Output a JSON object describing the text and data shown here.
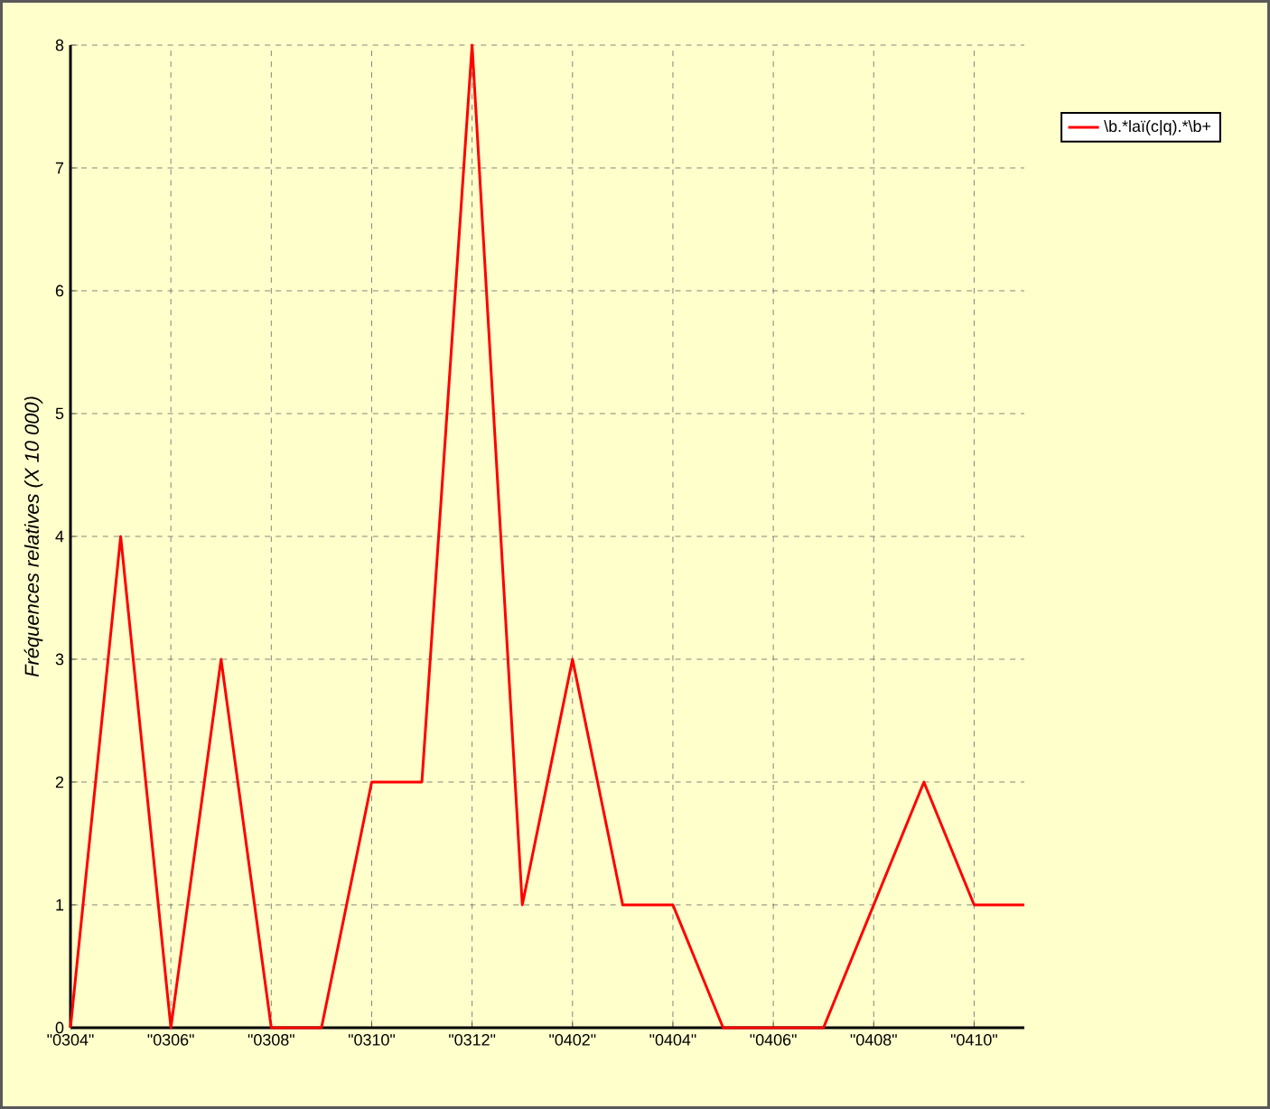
{
  "chart_data": {
    "type": "line",
    "ylabel": "Fréquences relatives (X 10 000)",
    "categories": [
      "\"0304\"",
      null,
      "\"0306\"",
      null,
      "\"0308\"",
      null,
      "\"0310\"",
      null,
      "\"0312\"",
      null,
      "\"0402\"",
      null,
      "\"0404\"",
      null,
      "\"0406\"",
      null,
      "\"0408\"",
      null,
      "\"0410\"",
      null
    ],
    "series": [
      {
        "name": "\\b.*laï(c|q).*\\b+",
        "color": "#ff0000",
        "values": [
          0,
          4,
          0,
          3,
          0,
          0,
          2,
          2,
          8,
          1,
          3,
          1,
          1,
          0,
          0,
          0,
          1,
          2,
          1,
          1
        ]
      }
    ],
    "ylim": [
      0,
      8
    ],
    "yticks": [
      0,
      1,
      2,
      3,
      4,
      5,
      6,
      7,
      8
    ],
    "grid": true,
    "legend": "top right",
    "marker": "none",
    "line_style": "solid"
  }
}
